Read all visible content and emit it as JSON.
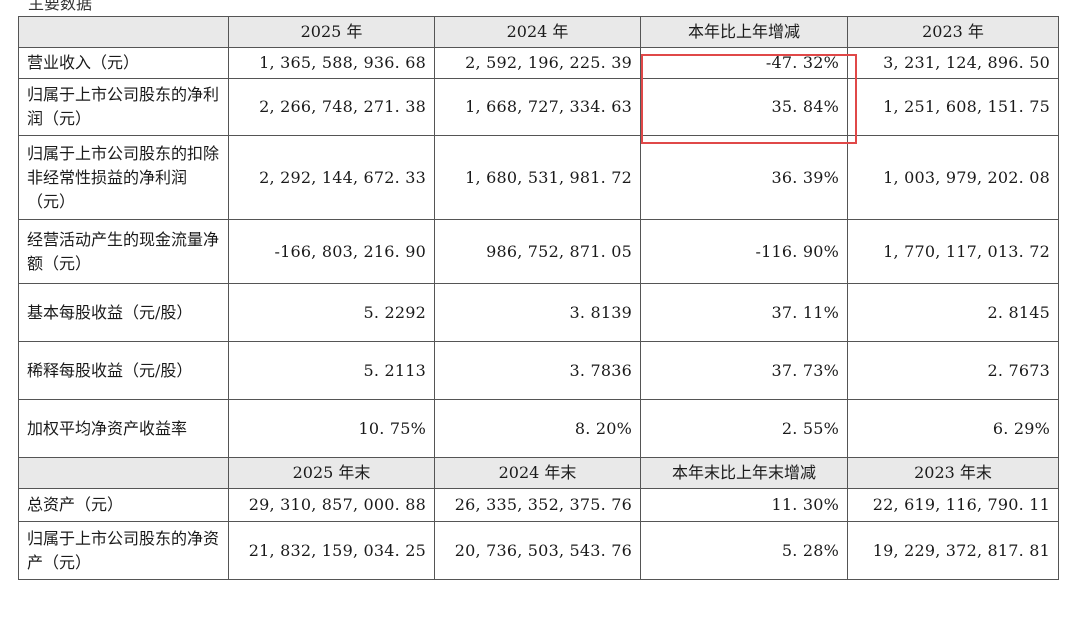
{
  "top_fragment": "主要数据",
  "header1": [
    "",
    "2025 年",
    "2024 年",
    "本年比上年增减",
    "2023 年"
  ],
  "rows1": [
    {
      "label": "营业收入（元）",
      "v2025": "1, 365, 588, 936. 68",
      "v2024": "2, 592, 196, 225. 39",
      "chg": "-47. 32%",
      "v2023": "3, 231, 124, 896. 50"
    },
    {
      "label": "归属于上市公司股东的净利润（元）",
      "v2025": "2, 266, 748, 271. 38",
      "v2024": "1, 668, 727, 334. 63",
      "chg": "35. 84%",
      "v2023": "1, 251, 608, 151. 75"
    },
    {
      "label": "归属于上市公司股东的扣除非经常性损益的净利润（元）",
      "v2025": "2, 292, 144, 672. 33",
      "v2024": "1, 680, 531, 981. 72",
      "chg": "36. 39%",
      "v2023": "1, 003, 979, 202. 08"
    },
    {
      "label": "经营活动产生的现金流量净额（元）",
      "v2025": "-166, 803, 216. 90",
      "v2024": "986, 752, 871. 05",
      "chg": "-116. 90%",
      "v2023": "1, 770, 117, 013. 72"
    },
    {
      "label": "基本每股收益（元/股）",
      "v2025": "5. 2292",
      "v2024": "3. 8139",
      "chg": "37. 11%",
      "v2023": "2. 8145"
    },
    {
      "label": "稀释每股收益（元/股）",
      "v2025": "5. 2113",
      "v2024": "3. 7836",
      "chg": "37. 73%",
      "v2023": "2. 7673"
    },
    {
      "label": "加权平均净资产收益率",
      "v2025": "10. 75%",
      "v2024": "8. 20%",
      "chg": "2. 55%",
      "v2023": "6. 29%"
    }
  ],
  "header2": [
    "",
    "2025 年末",
    "2024 年末",
    "本年末比上年末增减",
    "2023 年末"
  ],
  "rows2": [
    {
      "label": "总资产（元）",
      "v2025": "29, 310, 857, 000. 88",
      "v2024": "26, 335, 352, 375. 76",
      "chg": "11. 30%",
      "v2023": "22, 619, 116, 790. 11"
    },
    {
      "label": "归属于上市公司股东的净资产（元）",
      "v2025": "21, 832, 159, 034. 25",
      "v2024": "20, 736, 503, 543. 76",
      "chg": "5. 28%",
      "v2023": "19, 229, 372, 817. 81"
    }
  ],
  "highlight_color": "#e04848"
}
